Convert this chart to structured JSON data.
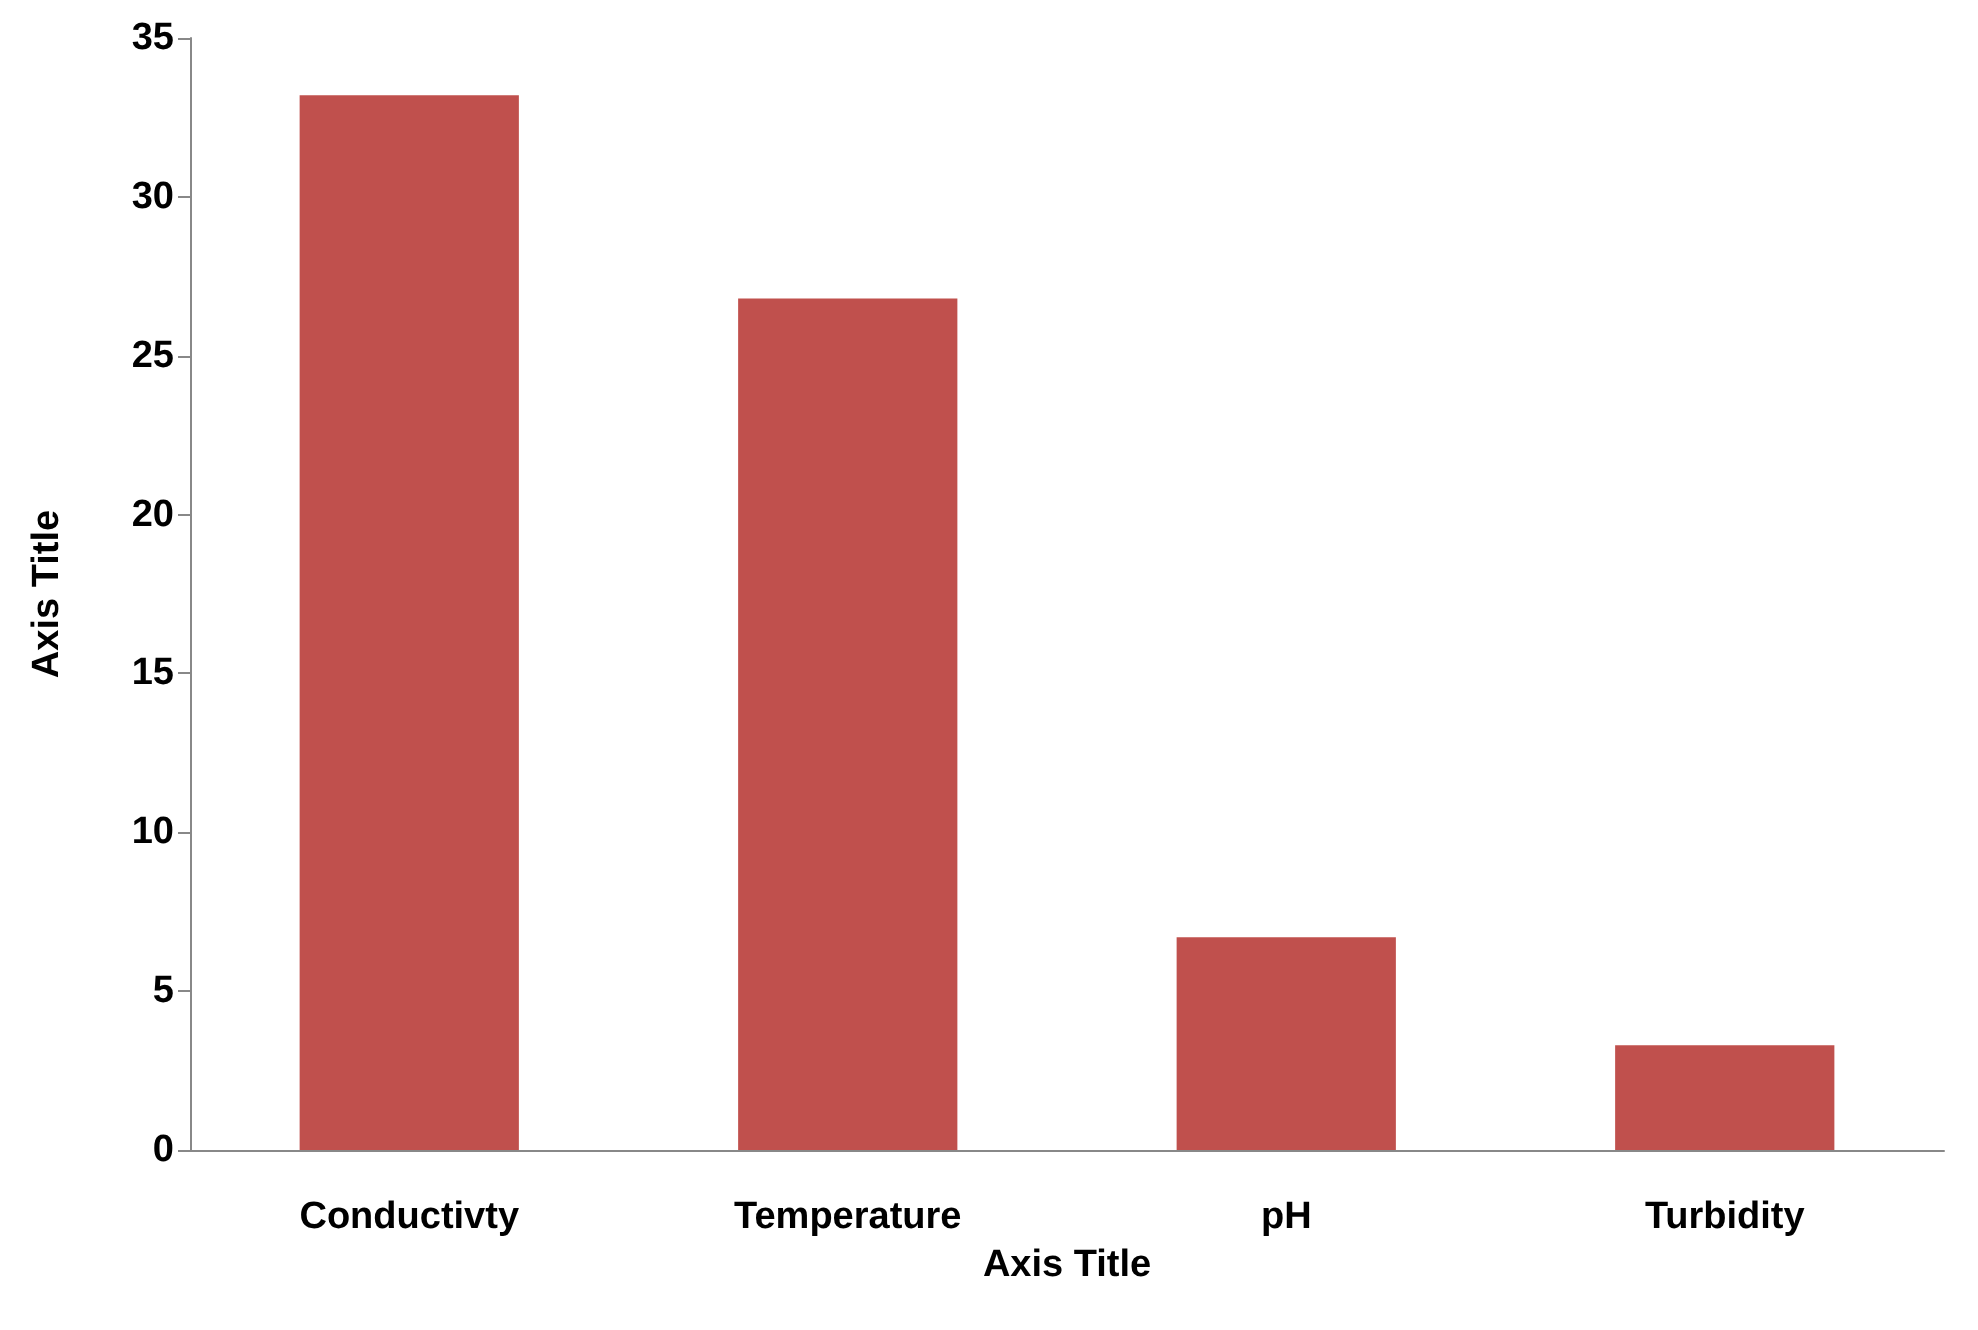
{
  "chart_data": {
    "type": "bar",
    "xlabel": "Axis Title",
    "ylabel": "Axis Title",
    "categories": [
      "Conductivty",
      "Temperature",
      "pH",
      "Turbidity"
    ],
    "values": [
      33.2,
      26.8,
      6.7,
      3.3
    ],
    "color": "#c0504d",
    "ylim": [
      0,
      35
    ],
    "yticks": [
      0,
      5,
      10,
      15,
      20,
      25,
      30,
      35
    ],
    "grid": false
  }
}
